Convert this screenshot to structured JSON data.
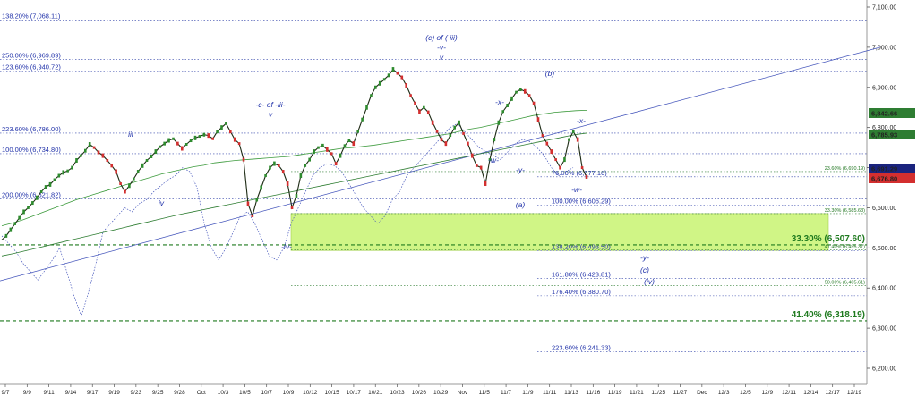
{
  "chart_data": {
    "type": "line",
    "title": "",
    "xlabel": "",
    "ylabel": "",
    "ylim": [
      6190,
      7100
    ],
    "y_ticks": [
      "6,200.00",
      "6,300.00",
      "6,400.00",
      "6,500.00",
      "6,600.00",
      "6,700.00",
      "6,800.00",
      "6,900.00",
      "7,000.00",
      "7,100.00"
    ],
    "x_ticks": [
      "9/7",
      "9/9",
      "9/11",
      "9/14",
      "9/17",
      "9/19",
      "9/23",
      "9/25",
      "9/28",
      "Oct",
      "10/3",
      "10/5",
      "10/7",
      "10/9",
      "10/12",
      "10/15",
      "10/17",
      "10/21",
      "10/23",
      "10/26",
      "10/29",
      "Nov",
      "11/5",
      "11/7",
      "11/9",
      "11/11",
      "11/13",
      "11/16",
      "11/19",
      "11/21",
      "11/25",
      "11/27",
      "Dec",
      "12/3",
      "12/5",
      "12/9",
      "12/11",
      "12/14",
      "12/17",
      "12/19"
    ],
    "last_close": 6676.8,
    "price_tags": [
      {
        "text": "6,842.66",
        "color": "#2e7d32"
      },
      {
        "text": "6,785.93",
        "color": "#2e7d32"
      },
      {
        "text": "6,691.29",
        "color": "#1a237e"
      },
      {
        "text": "6,676.80",
        "color": "#d32f2f"
      }
    ],
    "fib_levels_left": [
      {
        "label": "138.20% (7,068.11)",
        "value": 7068.11
      },
      {
        "label": "250.00% (6,969.89)",
        "value": 6969.89
      },
      {
        "label": "123.60% (6,940.72)",
        "value": 6940.72
      },
      {
        "label": "223.60% (6,786.00)",
        "value": 6786.0
      },
      {
        "label": "100.00% (6,734.80)",
        "value": 6734.8
      },
      {
        "label": "200.00% (6,621.82)",
        "value": 6621.82
      }
    ],
    "fib_levels_mid": [
      {
        "label": "76.00% (6,677.16)",
        "value": 6677.16
      },
      {
        "label": "100.00% (6,606.29)",
        "value": 6606.29
      },
      {
        "label": "138.20% (6,493.50)",
        "value": 6493.5
      },
      {
        "label": "161.80% (6,423.81)",
        "value": 6423.81
      },
      {
        "label": "176.40% (6,380.70)",
        "value": 6380.7
      },
      {
        "label": "223.60% (6,241.33)",
        "value": 6241.33
      }
    ],
    "fib_levels_right": [
      {
        "label": "23.60% (6,690.19)",
        "value": 6690.19
      },
      {
        "label": "33.30% (6,585.63)",
        "value": 6585.63
      },
      {
        "label": "41.40% (6,495.37)",
        "value": 6495.37
      },
      {
        "label": "50.00% (6,405.61)",
        "value": 6405.61
      }
    ],
    "big_levels": [
      {
        "label": "33.30% (6,507.60)",
        "value": 6507.6
      },
      {
        "label": "41.40% (6,318.19)",
        "value": 6318.19
      }
    ],
    "support_zone": [
      6493.5,
      6585.63
    ],
    "wave_labels": [
      {
        "text": "iii"
      },
      {
        "text": "iv"
      },
      {
        "text": "-c- of -iii-"
      },
      {
        "text": "v"
      },
      {
        "text": "-iv-"
      },
      {
        "text": "(c) of ( iii)"
      },
      {
        "text": "-v-"
      },
      {
        "text": "v"
      },
      {
        "text": "-x-"
      },
      {
        "text": "-w-"
      },
      {
        "text": "-y-"
      },
      {
        "text": "(a)"
      },
      {
        "text": "(b)"
      },
      {
        "text": "-x-"
      },
      {
        "text": "-w-"
      },
      {
        "text": "-y-"
      },
      {
        "text": "(c)"
      },
      {
        "text": "(iv)"
      }
    ],
    "price_series": [
      6520,
      6530,
      6545,
      6560,
      6575,
      6590,
      6600,
      6612,
      6625,
      6640,
      6652,
      6658,
      6670,
      6680,
      6688,
      6692,
      6700,
      6718,
      6730,
      6742,
      6758,
      6750,
      6738,
      6730,
      6718,
      6705,
      6690,
      6660,
      6640,
      6655,
      6672,
      6690,
      6705,
      6718,
      6728,
      6740,
      6752,
      6760,
      6768,
      6772,
      6760,
      6748,
      6758,
      6768,
      6774,
      6778,
      6782,
      6780,
      6772,
      6790,
      6800,
      6810,
      6790,
      6770,
      6760,
      6720,
      6610,
      6580,
      6620,
      6650,
      6680,
      6700,
      6710,
      6705,
      6690,
      6660,
      6600,
      6630,
      6680,
      6705,
      6720,
      6740,
      6750,
      6755,
      6745,
      6735,
      6710,
      6730,
      6755,
      6768,
      6760,
      6790,
      6820,
      6850,
      6880,
      6900,
      6910,
      6920,
      6930,
      6945,
      6935,
      6925,
      6905,
      6880,
      6860,
      6840,
      6850,
      6838,
      6812,
      6790,
      6770,
      6760,
      6780,
      6800,
      6812,
      6785,
      6760,
      6730,
      6705,
      6700,
      6660,
      6720,
      6770,
      6812,
      6840,
      6855,
      6872,
      6888,
      6895,
      6890,
      6880,
      6860,
      6820,
      6780,
      6760,
      6740,
      6720,
      6700,
      6720,
      6770,
      6790,
      6770,
      6700,
      6676.8
    ],
    "ma_series_1": [
      6555,
      6562,
      6570,
      6580,
      6590,
      6600,
      6610,
      6620,
      6628,
      6636,
      6644,
      6652,
      6660,
      6668,
      6676,
      6684,
      6690,
      6696,
      6702,
      6706,
      6712,
      6715,
      6718,
      6720,
      6722,
      6724,
      6726,
      6728,
      6732,
      6736,
      6740,
      6744,
      6748,
      6750,
      6753,
      6756,
      6760,
      6764,
      6768,
      6772,
      6776,
      6780,
      6784,
      6790,
      6796,
      6800,
      6806,
      6812,
      6818,
      6824,
      6830,
      6834,
      6838,
      6840,
      6842,
      6843
    ],
    "ma_series_2": [
      6480,
      6486,
      6493,
      6500,
      6507,
      6514,
      6521,
      6528,
      6535,
      6542,
      6549,
      6556,
      6563,
      6570,
      6577,
      6584,
      6590,
      6596,
      6602,
      6608,
      6614,
      6620,
      6626,
      6632,
      6638,
      6644,
      6650,
      6656,
      6662,
      6668,
      6674,
      6680,
      6686,
      6692,
      6698,
      6704,
      6710,
      6716,
      6722,
      6728,
      6734,
      6740,
      6746,
      6752,
      6758,
      6764,
      6770,
      6776,
      6782,
      6786
    ],
    "oscillator_series": [
      6530,
      6510,
      6490,
      6460,
      6440,
      6420,
      6445,
      6470,
      6500,
      6440,
      6380,
      6330,
      6390,
      6460,
      6540,
      6560,
      6580,
      6600,
      6590,
      6610,
      6620,
      6640,
      6655,
      6670,
      6680,
      6700,
      6690,
      6650,
      6560,
      6500,
      6470,
      6500,
      6540,
      6580,
      6590,
      6560,
      6520,
      6480,
      6470,
      6500,
      6560,
      6600,
      6640,
      6680,
      6700,
      6710,
      6705,
      6690,
      6660,
      6630,
      6600,
      6580,
      6560,
      6580,
      6620,
      6640,
      6680,
      6700,
      6720,
      6740,
      6760,
      6780,
      6800,
      6810,
      6790,
      6770,
      6750,
      6740,
      6730,
      6720,
      6740,
      6760,
      6770,
      6765,
      6750,
      6730,
      6700,
      6680,
      6690,
      6700
    ],
    "trendline": {
      "start": [
        0,
        6418
      ],
      "end": [
        1,
        7000
      ]
    }
  }
}
